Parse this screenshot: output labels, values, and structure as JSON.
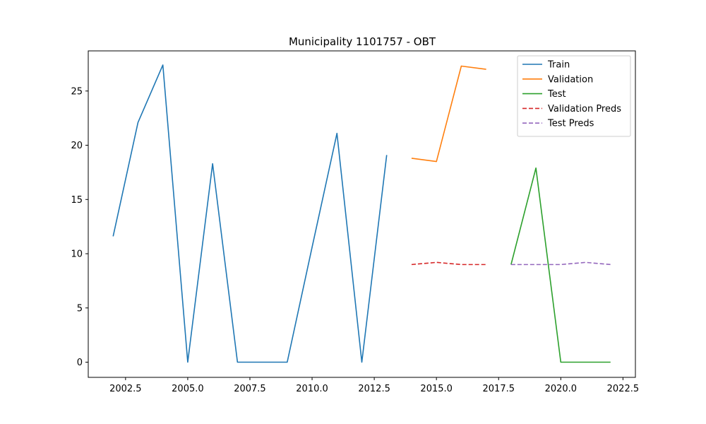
{
  "chart_data": {
    "type": "line",
    "title": "Municipality 1101757 - OBT",
    "xlabel": "",
    "ylabel": "",
    "xlim": [
      2001.0,
      2023.0
    ],
    "ylim": [
      -1.4,
      28.7
    ],
    "x_ticks": [
      {
        "value": 2002.5,
        "label": "2002.5"
      },
      {
        "value": 2005.0,
        "label": "2005.0"
      },
      {
        "value": 2007.5,
        "label": "2007.5"
      },
      {
        "value": 2010.0,
        "label": "2010.0"
      },
      {
        "value": 2012.5,
        "label": "2012.5"
      },
      {
        "value": 2015.0,
        "label": "2015.0"
      },
      {
        "value": 2017.5,
        "label": "2017.5"
      },
      {
        "value": 2020.0,
        "label": "2020.0"
      },
      {
        "value": 2022.5,
        "label": "2022.5"
      }
    ],
    "y_ticks": [
      {
        "value": 0,
        "label": "0"
      },
      {
        "value": 5,
        "label": "5"
      },
      {
        "value": 10,
        "label": "10"
      },
      {
        "value": 15,
        "label": "15"
      },
      {
        "value": 20,
        "label": "20"
      },
      {
        "value": 25,
        "label": "25"
      }
    ],
    "grid": false,
    "legend_position": "top-right",
    "series": [
      {
        "name": "Train",
        "color": "#1f77b4",
        "dashed": false,
        "x": [
          2002,
          2003,
          2004,
          2005,
          2006,
          2007,
          2008,
          2009,
          2010,
          2011,
          2012,
          2013
        ],
        "y": [
          11.6,
          22.1,
          27.4,
          0.0,
          18.3,
          0.0,
          0.0,
          0.0,
          10.6,
          21.1,
          0.0,
          19.1
        ]
      },
      {
        "name": "Validation",
        "color": "#ff7f0e",
        "dashed": false,
        "x": [
          2014,
          2015,
          2016,
          2017
        ],
        "y": [
          18.8,
          18.5,
          27.3,
          27.0
        ]
      },
      {
        "name": "Test",
        "color": "#2ca02c",
        "dashed": false,
        "x": [
          2018,
          2019,
          2020,
          2021,
          2022
        ],
        "y": [
          9.0,
          17.9,
          0.0,
          0.0,
          0.0
        ]
      },
      {
        "name": "Validation Preds",
        "color": "#d62728",
        "dashed": true,
        "x": [
          2014,
          2015,
          2016,
          2017
        ],
        "y": [
          9.0,
          9.2,
          9.0,
          9.0
        ]
      },
      {
        "name": "Test Preds",
        "color": "#9467bd",
        "dashed": true,
        "x": [
          2018,
          2019,
          2020,
          2021,
          2022
        ],
        "y": [
          9.0,
          9.0,
          9.0,
          9.2,
          9.0
        ]
      }
    ]
  }
}
